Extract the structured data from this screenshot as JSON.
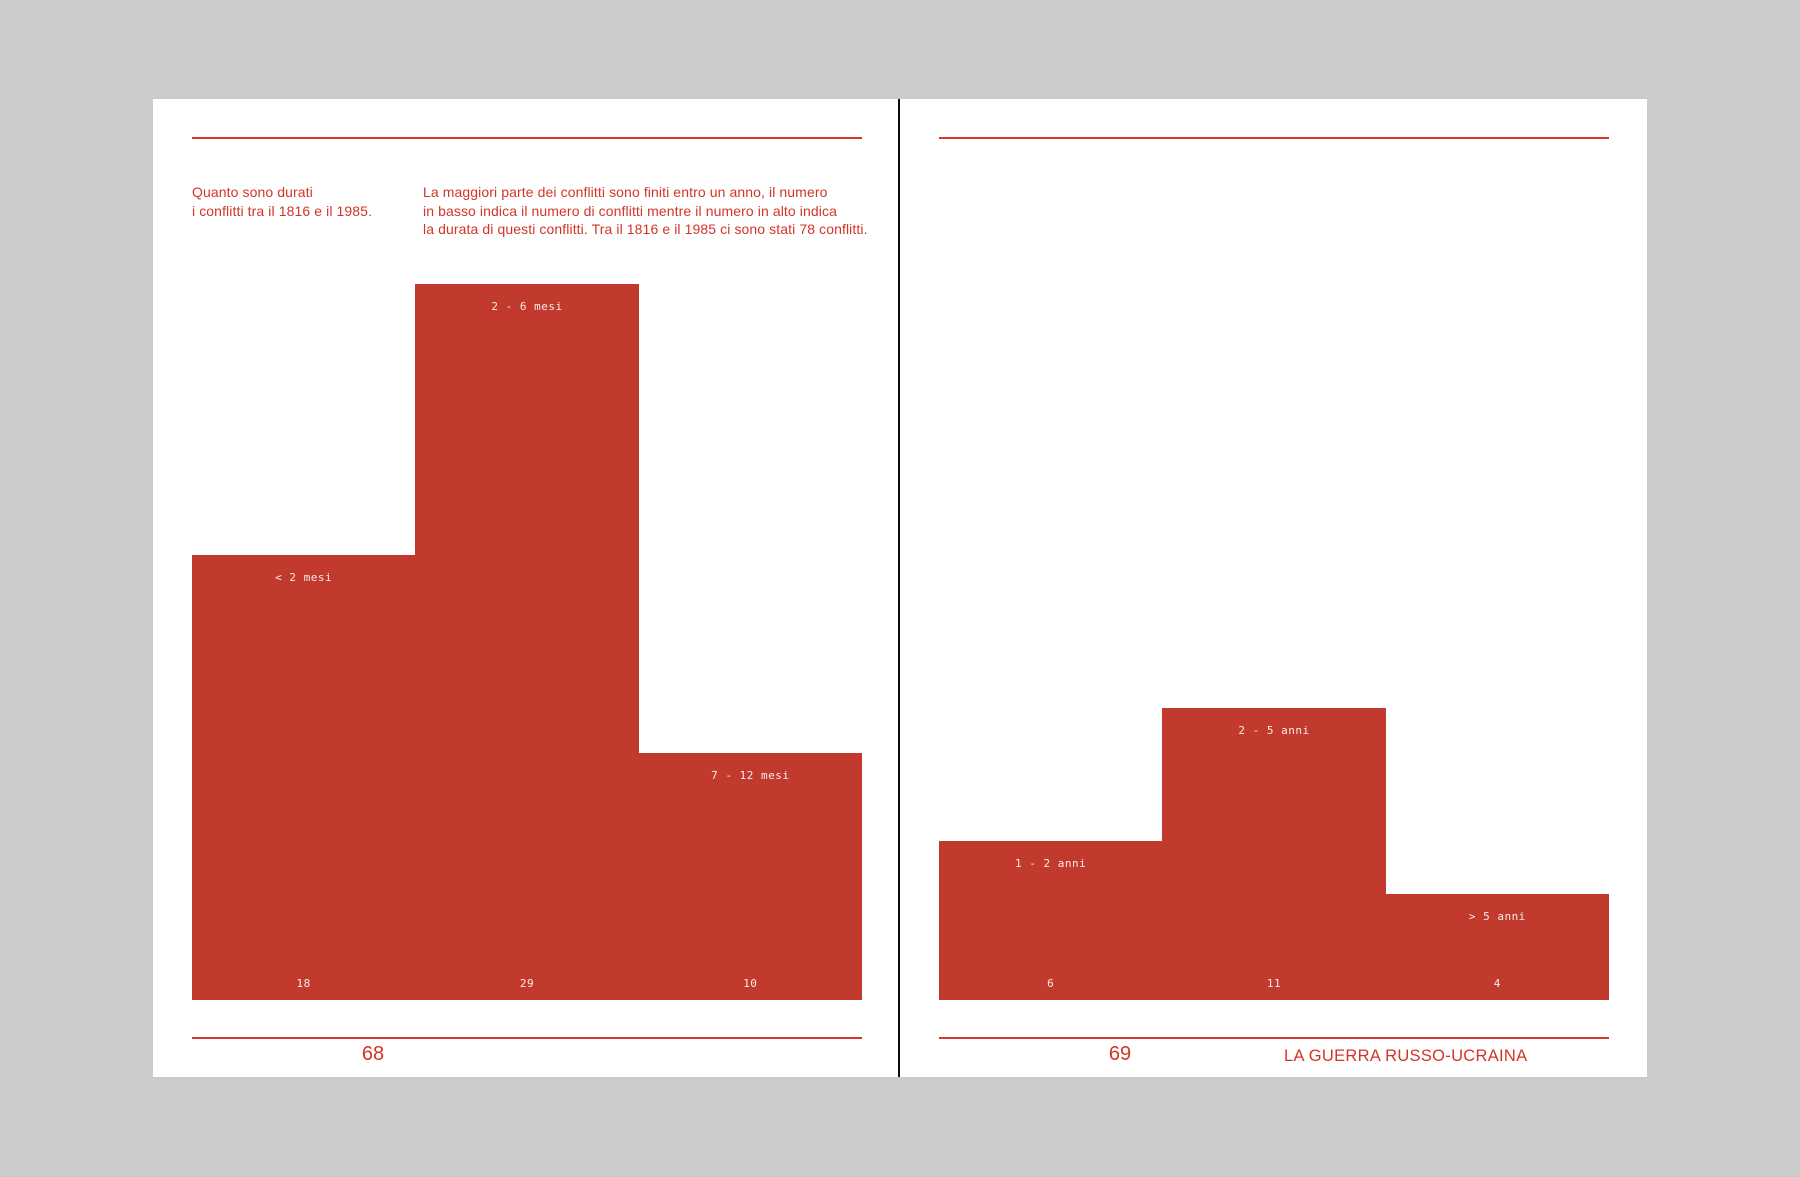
{
  "colors": {
    "background": "#cbcbcb",
    "page": "#ffffff",
    "accent_text": "#d23528",
    "rule": "#d23a2b",
    "bar": "#c23a2e",
    "bar_label": "#f8ece8",
    "spine": "#0d0d0d"
  },
  "left_page": {
    "heading": "Quanto sono durati\ni conflitti tra il 1816 e il 1985.",
    "description": "La maggiori parte dei conflitti sono finiti entro un anno, il numero\nin basso indica il numero di conflitti mentre il numero in alto indica\nla durata di questi conflitti. Tra il 1816 e il 1985 ci sono stati 78 conflitti.",
    "page_number": "68"
  },
  "right_page": {
    "page_number": "69",
    "chapter_title": "LA GUERRA RUSSO-UCRAINA"
  },
  "chart_data": [
    {
      "type": "bar",
      "title": "",
      "categories": [
        "< 2 mesi",
        "2 - 6 mesi",
        "7 - 12 mesi"
      ],
      "values": [
        18,
        29,
        10
      ],
      "category_label_position": "top-inside-bar",
      "value_label_position": "bottom-inside-bar",
      "grid": false,
      "axes_hidden": true,
      "bar_style": "adjacent-step-histogram"
    },
    {
      "type": "bar",
      "title": "",
      "categories": [
        "1 - 2 anni",
        "2 - 5 anni",
        "> 5 anni"
      ],
      "values": [
        6,
        11,
        4
      ],
      "category_label_position": "top-inside-bar",
      "value_label_position": "bottom-inside-bar",
      "grid": false,
      "axes_hidden": true,
      "bar_style": "adjacent-step-histogram"
    }
  ]
}
